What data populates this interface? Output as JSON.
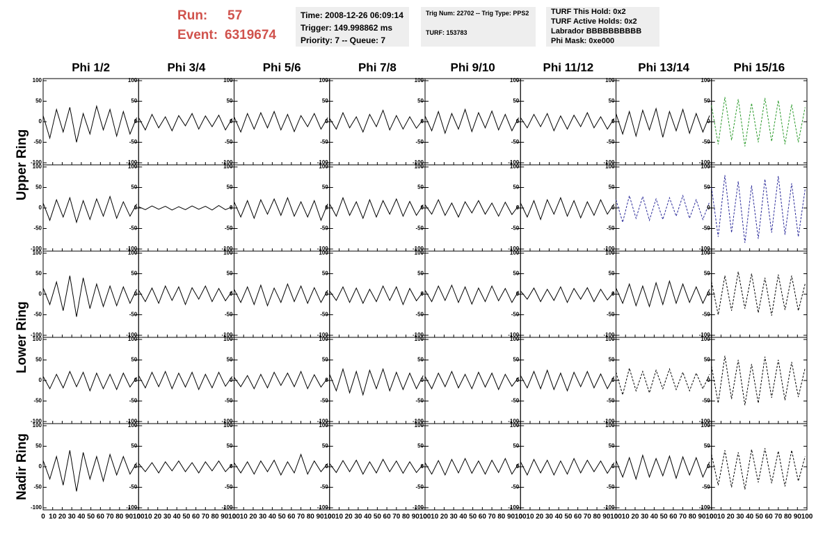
{
  "header": {
    "run_label": "Run:",
    "run": "57",
    "event_label": "Event:",
    "event": "6319674"
  },
  "info": [
    [
      "Time: 2008-12-26 06:09:14",
      "Trigger: 149.998862 ms",
      "Priority: 7 -- Queue: 7"
    ],
    [
      "Trig Num: 22702 -- Trig Type: PPS2",
      "TURF: 153783"
    ],
    [
      "TURF This Hold: 0x2",
      "TURF Active Holds: 0x2",
      "Labrador BBBBBBBBBB",
      "Phi Mask: 0xe000"
    ]
  ],
  "columns": [
    "Phi 1/2",
    "Phi 3/4",
    "Phi 5/6",
    "Phi 7/8",
    "Phi 9/10",
    "Phi 11/12",
    "Phi 13/14",
    "Phi 15/16"
  ],
  "rows": [
    "Upper Ring",
    "Lower Ring",
    "Nadir Ring"
  ],
  "chart_data": {
    "type": "line",
    "x": [
      0,
      7,
      14,
      21,
      28,
      35,
      42,
      49,
      56,
      63,
      70,
      77,
      84,
      91,
      98
    ],
    "xlim": [
      0,
      100
    ],
    "xticks": [
      0,
      10,
      20,
      30,
      40,
      50,
      60,
      70,
      80,
      90,
      100
    ],
    "ylim": [
      -100,
      100
    ],
    "yticks": [
      -100,
      -50,
      0,
      50,
      100
    ],
    "panels": [
      [
        {
          "color": "#000000",
          "dashed": false,
          "values": [
            15,
            -40,
            30,
            -25,
            35,
            -50,
            20,
            -30,
            38,
            -20,
            30,
            -35,
            25,
            -30,
            10
          ]
        },
        {
          "color": "#000000",
          "dashed": false,
          "values": [
            10,
            -20,
            18,
            -15,
            12,
            -22,
            15,
            -10,
            20,
            -18,
            14,
            -12,
            16,
            -20,
            8
          ]
        },
        {
          "color": "#000000",
          "dashed": false,
          "values": [
            12,
            -25,
            20,
            -18,
            22,
            -15,
            25,
            -20,
            18,
            -24,
            15,
            -12,
            20,
            -18,
            10
          ]
        },
        {
          "color": "#000000",
          "dashed": false,
          "values": [
            8,
            -18,
            22,
            -15,
            12,
            -25,
            18,
            -12,
            28,
            -20,
            15,
            -18,
            12,
            -16,
            6
          ]
        },
        {
          "color": "#000000",
          "dashed": false,
          "values": [
            14,
            -22,
            25,
            -28,
            20,
            -18,
            30,
            -24,
            22,
            -15,
            26,
            -20,
            18,
            -22,
            10
          ]
        },
        {
          "color": "#000000",
          "dashed": false,
          "values": [
            10,
            -15,
            18,
            -12,
            20,
            -22,
            14,
            -18,
            16,
            -12,
            22,
            -15,
            12,
            -18,
            8
          ]
        },
        {
          "color": "#000000",
          "dashed": false,
          "values": [
            20,
            -30,
            25,
            -35,
            28,
            -20,
            32,
            -38,
            25,
            -22,
            30,
            -28,
            20,
            -25,
            15
          ]
        },
        {
          "color": "#2a9a2a",
          "dashed": true,
          "values": [
            40,
            -55,
            60,
            -45,
            55,
            -60,
            45,
            -50,
            58,
            -48,
            52,
            -55,
            42,
            -50,
            35
          ]
        }
      ],
      [
        {
          "color": "#000000",
          "dashed": false,
          "values": [
            12,
            -30,
            20,
            -22,
            25,
            -35,
            18,
            -28,
            22,
            -20,
            28,
            -25,
            15,
            -20,
            10
          ]
        },
        {
          "color": "#000000",
          "dashed": false,
          "values": [
            3,
            -4,
            5,
            -3,
            4,
            -5,
            3,
            -4,
            5,
            -3,
            4,
            -5,
            6,
            -4,
            3
          ]
        },
        {
          "color": "#000000",
          "dashed": false,
          "values": [
            15,
            -22,
            18,
            -25,
            20,
            -15,
            22,
            -18,
            25,
            -20,
            15,
            -22,
            18,
            -30,
            10
          ]
        },
        {
          "color": "#000000",
          "dashed": false,
          "values": [
            10,
            -20,
            25,
            -18,
            15,
            -25,
            20,
            -22,
            18,
            -15,
            22,
            -20,
            16,
            -18,
            8
          ]
        },
        {
          "color": "#000000",
          "dashed": false,
          "values": [
            8,
            -15,
            20,
            -18,
            12,
            -22,
            15,
            -12,
            18,
            -15,
            12,
            -20,
            14,
            -16,
            6
          ]
        },
        {
          "color": "#000000",
          "dashed": false,
          "values": [
            12,
            -22,
            18,
            -28,
            20,
            -15,
            25,
            -20,
            18,
            -24,
            15,
            -18,
            20,
            -15,
            10
          ]
        },
        {
          "color": "#2a2a99",
          "dashed": true,
          "values": [
            20,
            -35,
            30,
            -25,
            28,
            -30,
            22,
            -28,
            25,
            -20,
            30,
            -25,
            20,
            -28,
            15
          ]
        },
        {
          "color": "#2a2a99",
          "dashed": true,
          "values": [
            50,
            -70,
            80,
            -60,
            65,
            -85,
            55,
            -75,
            70,
            -60,
            78,
            -65,
            60,
            -70,
            45
          ]
        }
      ],
      [
        {
          "color": "#000000",
          "dashed": false,
          "values": [
            15,
            -25,
            30,
            -40,
            45,
            -55,
            40,
            -35,
            25,
            -30,
            20,
            -28,
            18,
            -22,
            12
          ]
        },
        {
          "color": "#000000",
          "dashed": false,
          "values": [
            10,
            -18,
            15,
            -22,
            20,
            -15,
            18,
            -25,
            16,
            -12,
            20,
            -18,
            14,
            -16,
            8
          ]
        },
        {
          "color": "#000000",
          "dashed": false,
          "values": [
            12,
            -20,
            18,
            -25,
            22,
            -28,
            15,
            -20,
            25,
            -18,
            20,
            -22,
            16,
            -20,
            10
          ]
        },
        {
          "color": "#000000",
          "dashed": false,
          "values": [
            8,
            -15,
            18,
            -20,
            15,
            -22,
            12,
            -18,
            20,
            -15,
            18,
            -25,
            14,
            -16,
            6
          ]
        },
        {
          "color": "#000000",
          "dashed": false,
          "values": [
            10,
            -18,
            20,
            -15,
            22,
            -20,
            18,
            -24,
            15,
            -18,
            20,
            -16,
            14,
            -20,
            8
          ]
        },
        {
          "color": "#000000",
          "dashed": false,
          "values": [
            8,
            -12,
            15,
            -18,
            12,
            -15,
            18,
            -20,
            14,
            -12,
            16,
            -18,
            12,
            -14,
            6
          ]
        },
        {
          "color": "#000000",
          "dashed": false,
          "values": [
            15,
            -22,
            25,
            -28,
            20,
            -30,
            28,
            -25,
            32,
            -22,
            25,
            -20,
            18,
            -22,
            12
          ]
        },
        {
          "color": "#000000",
          "dashed": true,
          "values": [
            30,
            -50,
            45,
            -40,
            55,
            -35,
            50,
            -45,
            40,
            -52,
            48,
            -38,
            45,
            -40,
            25
          ]
        }
      ],
      [
        {
          "color": "#000000",
          "dashed": false,
          "values": [
            10,
            -20,
            15,
            -18,
            22,
            -15,
            20,
            -25,
            18,
            -20,
            15,
            -22,
            18,
            -16,
            8
          ]
        },
        {
          "color": "#000000",
          "dashed": false,
          "values": [
            12,
            -18,
            20,
            -15,
            22,
            -20,
            18,
            -16,
            20,
            -22,
            15,
            -18,
            20,
            -14,
            10
          ]
        },
        {
          "color": "#000000",
          "dashed": false,
          "values": [
            8,
            -15,
            12,
            -20,
            15,
            -18,
            20,
            -12,
            18,
            -15,
            22,
            -20,
            14,
            -16,
            6
          ]
        },
        {
          "color": "#000000",
          "dashed": false,
          "values": [
            15,
            -25,
            28,
            -30,
            22,
            -35,
            25,
            -20,
            28,
            -25,
            20,
            -22,
            18,
            -20,
            12
          ]
        },
        {
          "color": "#000000",
          "dashed": false,
          "values": [
            10,
            -20,
            18,
            -15,
            22,
            -18,
            15,
            -20,
            20,
            -16,
            18,
            -22,
            15,
            -14,
            8
          ]
        },
        {
          "color": "#000000",
          "dashed": false,
          "values": [
            12,
            -18,
            22,
            -20,
            25,
            -22,
            18,
            -25,
            20,
            -15,
            22,
            -18,
            16,
            -20,
            10
          ]
        },
        {
          "color": "#000000",
          "dashed": true,
          "values": [
            20,
            -35,
            30,
            -25,
            22,
            -30,
            25,
            -20,
            28,
            -22,
            20,
            -25,
            18,
            -20,
            15
          ]
        },
        {
          "color": "#000000",
          "dashed": true,
          "values": [
            35,
            -55,
            60,
            -45,
            50,
            -60,
            40,
            -55,
            58,
            -42,
            50,
            -48,
            45,
            -40,
            30
          ]
        }
      ],
      [
        {
          "color": "#000000",
          "dashed": false,
          "values": [
            15,
            -30,
            25,
            -45,
            40,
            -60,
            35,
            -30,
            25,
            -35,
            30,
            -20,
            25,
            -18,
            10
          ]
        },
        {
          "color": "#000000",
          "dashed": false,
          "values": [
            8,
            -12,
            10,
            -15,
            12,
            -10,
            14,
            -12,
            10,
            -15,
            12,
            -10,
            14,
            -12,
            6
          ]
        },
        {
          "color": "#000000",
          "dashed": false,
          "values": [
            10,
            -15,
            12,
            -18,
            14,
            -12,
            16,
            -20,
            12,
            -15,
            30,
            -18,
            14,
            -12,
            8
          ]
        },
        {
          "color": "#000000",
          "dashed": false,
          "values": [
            8,
            -14,
            15,
            -12,
            16,
            -18,
            12,
            -15,
            18,
            -12,
            14,
            -16,
            12,
            -14,
            6
          ]
        },
        {
          "color": "#000000",
          "dashed": false,
          "values": [
            10,
            -18,
            15,
            -20,
            18,
            -15,
            20,
            -16,
            14,
            -18,
            16,
            -14,
            20,
            -18,
            8
          ]
        },
        {
          "color": "#000000",
          "dashed": false,
          "values": [
            12,
            -20,
            18,
            -15,
            16,
            -20,
            14,
            -18,
            20,
            -15,
            16,
            -12,
            14,
            -16,
            10
          ]
        },
        {
          "color": "#000000",
          "dashed": false,
          "values": [
            15,
            -25,
            22,
            -30,
            28,
            -25,
            20,
            -22,
            26,
            -28,
            24,
            -20,
            22,
            -25,
            12
          ]
        },
        {
          "color": "#000000",
          "dashed": true,
          "values": [
            30,
            -45,
            40,
            -50,
            35,
            -55,
            42,
            -38,
            45,
            -40,
            38,
            -48,
            40,
            -35,
            25
          ]
        }
      ]
    ]
  }
}
